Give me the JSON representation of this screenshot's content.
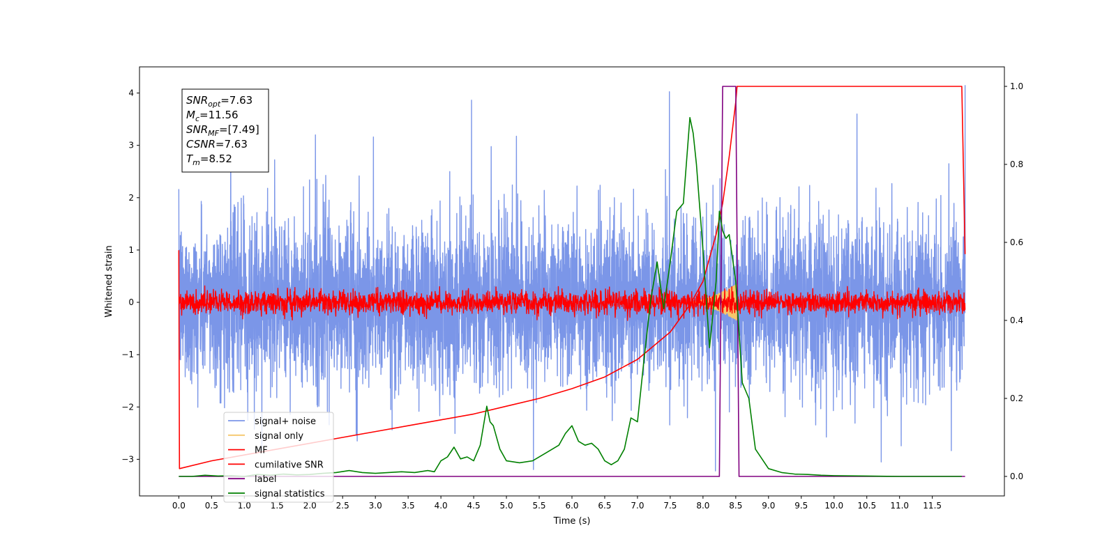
{
  "chart_data": {
    "type": "line",
    "xlabel": "Time (s)",
    "ylabel": "Whitened strain",
    "xlim": [
      -0.6,
      12.6
    ],
    "ylim": [
      -3.7,
      4.5
    ],
    "y2lim": [
      -0.05,
      1.05
    ],
    "x_ticks": [
      "0.0",
      "0.5",
      "1.0",
      "1.5",
      "2.0",
      "2.5",
      "3.0",
      "3.5",
      "4.0",
      "4.5",
      "5.0",
      "5.5",
      "6.0",
      "6.5",
      "7.0",
      "7.5",
      "8.0",
      "8.5",
      "9.0",
      "9.5",
      "10.0",
      "10.5",
      "11.0",
      "11.5"
    ],
    "y_ticks": [
      "−3",
      "−2",
      "−1",
      "0",
      "1",
      "2",
      "3",
      "4"
    ],
    "y2_ticks": [
      "0.0",
      "0.2",
      "0.4",
      "0.6",
      "0.8",
      "1.0"
    ],
    "annotation": [
      {
        "base": "SNR",
        "sub": "opt",
        "value": "=7.63"
      },
      {
        "base": "M",
        "sub": "c",
        "value": "=11.56"
      },
      {
        "base": "SNR",
        "sub": "MF",
        "value": "=[7.49]"
      },
      {
        "base": "CSNR",
        "sub": "",
        "value": "=7.63"
      },
      {
        "base": "T",
        "sub": "m",
        "value": "=8.52"
      }
    ],
    "legend_position": "lower-left",
    "series": [
      {
        "name": "signal+ noise",
        "color": "#7b96e8",
        "axis": "left",
        "kind": "noise",
        "x_range": [
          0.0,
          12.0
        ],
        "typical_amplitude": 1.3,
        "spike_extremes": [
          -3.35,
          4.15
        ]
      },
      {
        "name": "signal only",
        "color": "#f5c76b",
        "axis": "left",
        "kind": "chirp",
        "x_range": [
          7.8,
          8.52
        ],
        "peak_amplitude": 0.35
      },
      {
        "name": "MF",
        "color": "#ff0000",
        "axis": "left",
        "kind": "noise",
        "x_range": [
          0.0,
          12.0
        ],
        "typical_amplitude": 0.18
      },
      {
        "name": "cumilative SNR",
        "color": "#ff0000",
        "axis": "right",
        "x": [
          0.0,
          0.01,
          0.5,
          1.0,
          1.5,
          2.0,
          2.5,
          3.0,
          3.5,
          4.0,
          4.5,
          5.0,
          5.5,
          6.0,
          6.5,
          7.0,
          7.5,
          7.8,
          8.0,
          8.2,
          8.3,
          8.4,
          8.5,
          8.52,
          11.95,
          12.0
        ],
        "y": [
          0.58,
          0.02,
          0.04,
          0.055,
          0.07,
          0.085,
          0.1,
          0.115,
          0.13,
          0.145,
          0.16,
          0.18,
          0.2,
          0.225,
          0.255,
          0.3,
          0.37,
          0.44,
          0.5,
          0.62,
          0.7,
          0.82,
          0.96,
          1.0,
          1.0,
          0.57
        ]
      },
      {
        "name": "label",
        "color": "#800080",
        "axis": "right",
        "x": [
          0.0,
          8.25,
          8.3,
          8.5,
          8.55,
          12.0
        ],
        "y": [
          0.0,
          0.0,
          1.0,
          1.0,
          0.0,
          0.0
        ]
      },
      {
        "name": "signal statistics",
        "color": "#008000",
        "axis": "right",
        "x": [
          0.0,
          0.2,
          0.4,
          0.6,
          0.8,
          1.0,
          1.2,
          1.4,
          1.6,
          1.8,
          2.0,
          2.2,
          2.4,
          2.6,
          2.8,
          3.0,
          3.2,
          3.4,
          3.6,
          3.8,
          3.9,
          4.0,
          4.1,
          4.2,
          4.3,
          4.4,
          4.5,
          4.6,
          4.65,
          4.7,
          4.75,
          4.8,
          4.9,
          5.0,
          5.2,
          5.4,
          5.6,
          5.8,
          5.9,
          6.0,
          6.1,
          6.2,
          6.3,
          6.4,
          6.5,
          6.6,
          6.7,
          6.8,
          6.9,
          7.0,
          7.1,
          7.2,
          7.3,
          7.4,
          7.5,
          7.6,
          7.7,
          7.8,
          7.85,
          7.9,
          8.0,
          8.1,
          8.2,
          8.25,
          8.3,
          8.35,
          8.4,
          8.5,
          8.6,
          8.7,
          8.8,
          9.0,
          9.2,
          9.4,
          9.6,
          9.8,
          10.0,
          10.5,
          11.0,
          11.5,
          11.95
        ],
        "y": [
          0.0,
          0.0,
          0.003,
          0.001,
          0.002,
          0.0,
          0.005,
          0.003,
          0.006,
          0.004,
          0.005,
          0.008,
          0.01,
          0.015,
          0.01,
          0.008,
          0.01,
          0.012,
          0.01,
          0.015,
          0.012,
          0.04,
          0.05,
          0.075,
          0.045,
          0.05,
          0.04,
          0.08,
          0.13,
          0.18,
          0.14,
          0.13,
          0.07,
          0.04,
          0.035,
          0.04,
          0.06,
          0.08,
          0.11,
          0.13,
          0.09,
          0.08,
          0.085,
          0.07,
          0.04,
          0.03,
          0.04,
          0.07,
          0.15,
          0.14,
          0.3,
          0.45,
          0.55,
          0.43,
          0.55,
          0.68,
          0.7,
          0.92,
          0.88,
          0.8,
          0.58,
          0.33,
          0.5,
          0.68,
          0.63,
          0.61,
          0.62,
          0.5,
          0.24,
          0.2,
          0.07,
          0.02,
          0.01,
          0.006,
          0.005,
          0.003,
          0.002,
          0.001,
          0.0,
          0.0,
          0.0
        ]
      }
    ]
  }
}
